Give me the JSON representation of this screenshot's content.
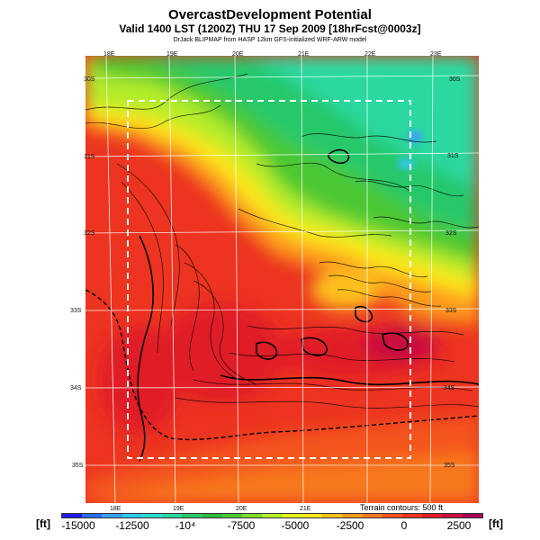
{
  "header": {
    "title": "OvercastDevelopment Potential",
    "valid_line": "Valid 1400 LST (1200Z) THU 17 Sep 2009 [18hrFcst@0003z]",
    "model_line": "DrJack BLIPMAP from HASP 12km GFS-initialized WRF-ARW model"
  },
  "map": {
    "top_lon_labels": [
      "18E",
      "19E",
      "20E",
      "21E",
      "22E",
      "23E"
    ],
    "bottom_lon_labels": [
      "18E",
      "19E",
      "20E",
      "21E"
    ],
    "left_lat_labels": [
      "30S",
      "31S",
      "32S",
      "33S",
      "34S",
      "35S"
    ],
    "right_lat_labels": [
      "30S",
      "31S",
      "32S",
      "33S",
      "34S",
      "35S"
    ],
    "terrain_note": "Terrain contours: 500 ft"
  },
  "colorbar": {
    "unit_left": "[ft]",
    "unit_right": "[ft]",
    "ticks": [
      "-15000",
      "-12500",
      "-10⁴",
      "-7500",
      "-5000",
      "-2500",
      "0",
      "2500"
    ],
    "colors": [
      "#1e1ee6",
      "#2a6cf0",
      "#3ba0f5",
      "#33c8f0",
      "#2adcd0",
      "#2ad8a0",
      "#26c86a",
      "#2eb83e",
      "#4cc832",
      "#7edc2a",
      "#b4ec2a",
      "#e6f41e",
      "#fce81e",
      "#fcc01e",
      "#fc9a1e",
      "#f8781e",
      "#f4541e",
      "#ec3420",
      "#e01c28",
      "#c81040",
      "#a8005a"
    ]
  }
}
